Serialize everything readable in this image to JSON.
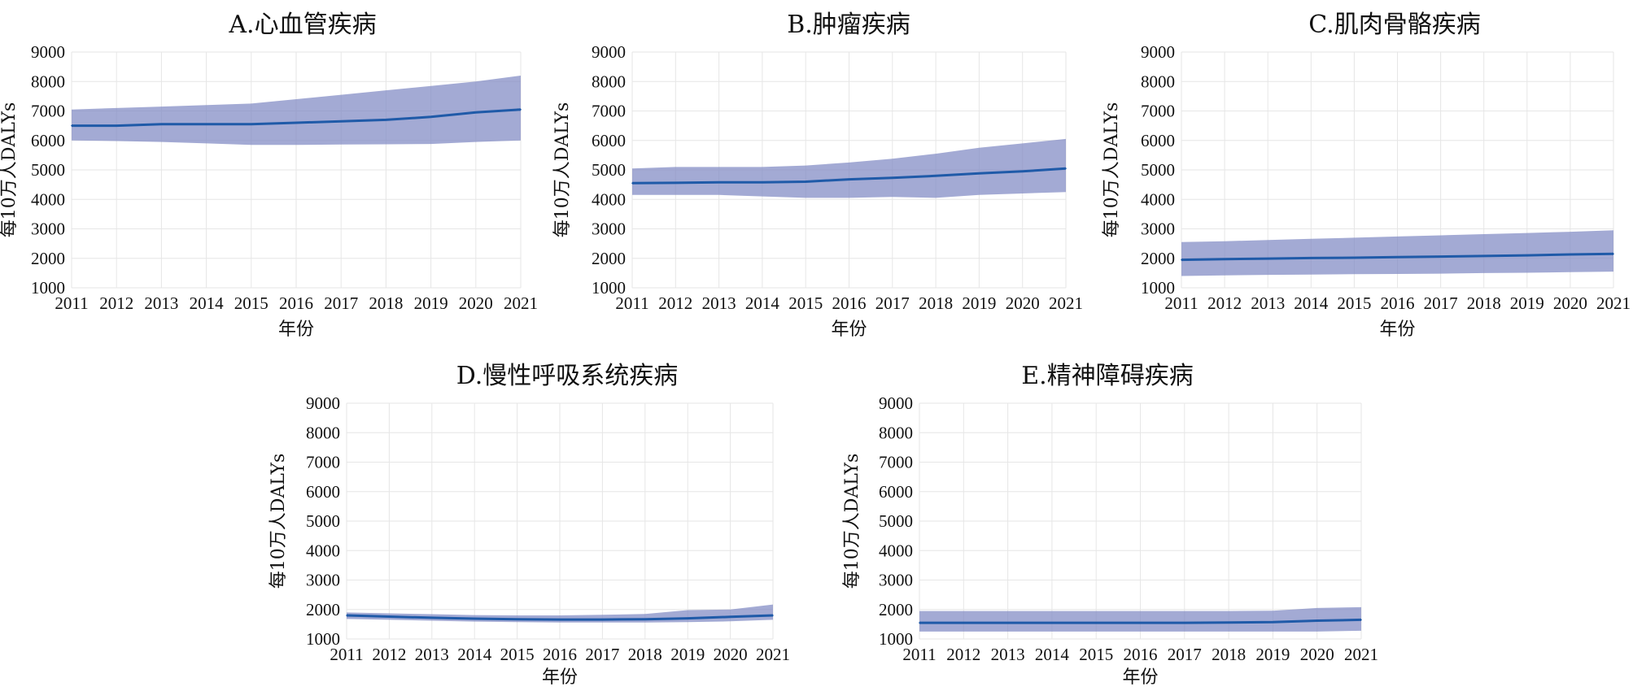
{
  "chart_data": [
    {
      "type": "line",
      "title": "A.心血管疾病",
      "xlabel": "年份",
      "ylabel": "每10万人DALYs",
      "x": [
        "2011",
        "2012",
        "2013",
        "2014",
        "2015",
        "2016",
        "2017",
        "2018",
        "2019",
        "2020",
        "2021"
      ],
      "ylim": [
        1000,
        9000
      ],
      "yticks": [
        "9000",
        "8000",
        "7000",
        "6000",
        "5000",
        "4000",
        "3000",
        "2000",
        "1000"
      ],
      "grid": true,
      "series": [
        {
          "values": [
            6500,
            6500,
            6550,
            6550,
            6550,
            6600,
            6650,
            6700,
            6800,
            6950,
            7050
          ],
          "lower": [
            6000,
            5980,
            5950,
            5900,
            5850,
            5850,
            5860,
            5870,
            5880,
            5950,
            6000
          ],
          "upper": [
            7050,
            7100,
            7150,
            7200,
            7250,
            7400,
            7550,
            7700,
            7850,
            8000,
            8200
          ]
        }
      ]
    },
    {
      "type": "line",
      "title": "B.肿瘤疾病",
      "xlabel": "年份",
      "ylabel": "每10万人DALYs",
      "x": [
        "2011",
        "2012",
        "2013",
        "2014",
        "2015",
        "2016",
        "2017",
        "2018",
        "2019",
        "2020",
        "2021"
      ],
      "ylim": [
        1000,
        9000
      ],
      "yticks": [
        "9000",
        "8000",
        "7000",
        "6000",
        "5000",
        "4000",
        "3000",
        "2000",
        "1000"
      ],
      "grid": true,
      "series": [
        {
          "values": [
            4550,
            4560,
            4580,
            4580,
            4600,
            4680,
            4730,
            4800,
            4880,
            4950,
            5050
          ],
          "lower": [
            4150,
            4150,
            4150,
            4100,
            4050,
            4050,
            4080,
            4050,
            4150,
            4200,
            4250
          ],
          "upper": [
            5050,
            5100,
            5100,
            5100,
            5150,
            5250,
            5380,
            5550,
            5750,
            5900,
            6050
          ]
        }
      ]
    },
    {
      "type": "line",
      "title": "C.肌肉骨骼疾病",
      "xlabel": "年份",
      "ylabel": "每10万人DALYs",
      "x": [
        "2011",
        "2012",
        "2013",
        "2014",
        "2015",
        "2016",
        "2017",
        "2018",
        "2019",
        "2020",
        "2021"
      ],
      "ylim": [
        1000,
        9000
      ],
      "yticks": [
        "9000",
        "8000",
        "7000",
        "6000",
        "5000",
        "4000",
        "3000",
        "2000",
        "1000"
      ],
      "grid": true,
      "series": [
        {
          "values": [
            1950,
            1970,
            1990,
            2010,
            2020,
            2040,
            2060,
            2080,
            2100,
            2130,
            2150
          ],
          "lower": [
            1400,
            1420,
            1440,
            1450,
            1460,
            1470,
            1480,
            1500,
            1510,
            1530,
            1550
          ],
          "upper": [
            2550,
            2580,
            2620,
            2660,
            2700,
            2740,
            2780,
            2820,
            2860,
            2900,
            2950
          ]
        }
      ]
    },
    {
      "type": "line",
      "title": "D.慢性呼吸系统疾病",
      "xlabel": "年份",
      "ylabel": "每10万人DALYs",
      "x": [
        "2011",
        "2012",
        "2013",
        "2014",
        "2015",
        "2016",
        "2017",
        "2018",
        "2019",
        "2020",
        "2021"
      ],
      "ylim": [
        1000,
        9000
      ],
      "yticks": [
        "9000",
        "8000",
        "7000",
        "6000",
        "5000",
        "4000",
        "3000",
        "2000",
        "1000"
      ],
      "grid": true,
      "series": [
        {
          "values": [
            1800,
            1760,
            1720,
            1690,
            1670,
            1660,
            1660,
            1670,
            1700,
            1750,
            1800
          ],
          "lower": [
            1680,
            1650,
            1620,
            1590,
            1570,
            1560,
            1560,
            1560,
            1570,
            1600,
            1650
          ],
          "upper": [
            1900,
            1870,
            1840,
            1810,
            1800,
            1800,
            1820,
            1850,
            1980,
            2000,
            2170
          ]
        }
      ]
    },
    {
      "type": "line",
      "title": "E.精神障碍疾病",
      "xlabel": "年份",
      "ylabel": "每10万人DALYs",
      "x": [
        "2011",
        "2012",
        "2013",
        "2014",
        "2015",
        "2016",
        "2017",
        "2018",
        "2019",
        "2020",
        "2021"
      ],
      "ylim": [
        1000,
        9000
      ],
      "yticks": [
        "9000",
        "8000",
        "7000",
        "6000",
        "5000",
        "4000",
        "3000",
        "2000",
        "1000"
      ],
      "grid": true,
      "series": [
        {
          "values": [
            1550,
            1550,
            1550,
            1550,
            1550,
            1550,
            1550,
            1560,
            1570,
            1620,
            1650
          ],
          "lower": [
            1250,
            1250,
            1250,
            1250,
            1250,
            1250,
            1250,
            1250,
            1250,
            1250,
            1280
          ],
          "upper": [
            1950,
            1950,
            1950,
            1950,
            1950,
            1950,
            1950,
            1950,
            1960,
            2050,
            2080
          ]
        }
      ]
    }
  ]
}
